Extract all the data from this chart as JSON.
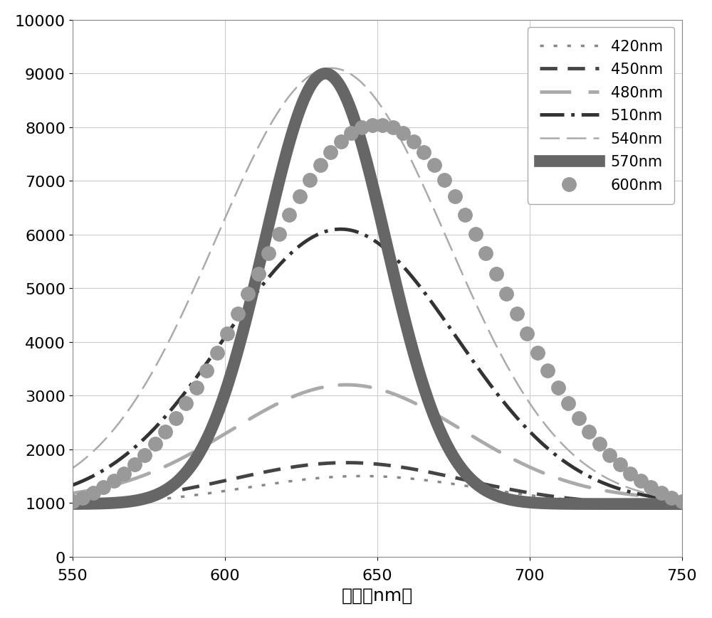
{
  "title": "",
  "xlabel": "波长（nm）",
  "ylabel": "",
  "xlim": [
    550,
    750
  ],
  "ylim": [
    0,
    10000
  ],
  "xticks": [
    550,
    600,
    650,
    700,
    750
  ],
  "yticks": [
    0,
    1000,
    2000,
    3000,
    4000,
    5000,
    6000,
    7000,
    8000,
    9000,
    10000
  ],
  "series": [
    {
      "label": "420nm",
      "color": "#888888",
      "ls_type": "dotted_small",
      "lw": 2.5,
      "peak_x": 645,
      "peak_y": 1500,
      "base_y": 950,
      "sigma": 38
    },
    {
      "label": "450nm",
      "color": "#444444",
      "ls_type": "dashed_medium",
      "lw": 3.5,
      "peak_x": 640,
      "peak_y": 1750,
      "base_y": 960,
      "sigma": 38
    },
    {
      "label": "480nm",
      "color": "#aaaaaa",
      "ls_type": "dashed_wide_outline",
      "lw": 3.5,
      "peak_x": 640,
      "peak_y": 3200,
      "base_y": 1050,
      "sigma": 38
    },
    {
      "label": "510nm",
      "color": "#333333",
      "ls_type": "dashdotdot",
      "lw": 3.5,
      "peak_x": 638,
      "peak_y": 6100,
      "base_y": 980,
      "sigma": 38
    },
    {
      "label": "540nm",
      "color": "#aaaaaa",
      "ls_type": "dashed_long_thin",
      "lw": 1.8,
      "peak_x": 635,
      "peak_y": 9100,
      "base_y": 980,
      "sigma": 38
    },
    {
      "label": "570nm",
      "color": "#666666",
      "ls_type": "solid_thick",
      "lw": 12,
      "peak_x": 633,
      "peak_y": 9000,
      "base_y": 980,
      "sigma": 20
    },
    {
      "label": "600nm",
      "color": "#999999",
      "ls_type": "dotted_large",
      "lw": 10,
      "peak_x": 650,
      "peak_y": 8050,
      "base_y": 700,
      "sigma": 40
    }
  ],
  "grid_color": "#cccccc",
  "background_color": "#ffffff",
  "xlabel_fontsize": 18,
  "tick_fontsize": 16,
  "legend_fontsize": 15
}
